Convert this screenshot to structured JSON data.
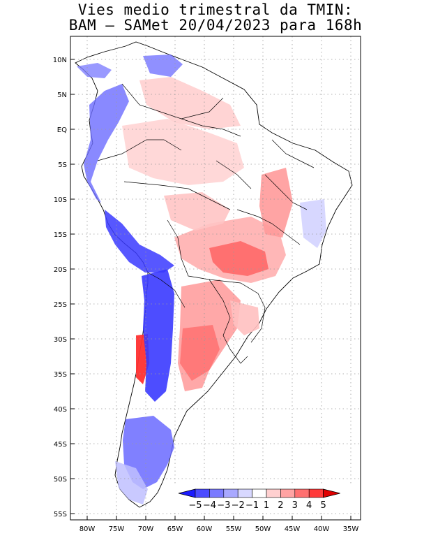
{
  "title": {
    "line1": "Vies medio trimestral da TMIN:",
    "line2": "BAM – SAMet 20/04/2023  para 168h"
  },
  "map_data": {
    "region": "South America",
    "lon_range": [
      -83,
      -35
    ],
    "lat_range": [
      -56,
      13
    ],
    "lon_ticks": [
      "80W",
      "75W",
      "70W",
      "65W",
      "60W",
      "55W",
      "50W",
      "45W",
      "40W",
      "35W"
    ],
    "lat_ticks": [
      "10N",
      "5N",
      "EQ",
      "5S",
      "10S",
      "15S",
      "20S",
      "25S",
      "30S",
      "35S",
      "40S",
      "45S",
      "50S",
      "55S"
    ],
    "grid": "dotted",
    "colorbar": {
      "labels": [
        "−5",
        "−4",
        "−3",
        "−2",
        "−1",
        "1",
        "2",
        "3",
        "4",
        "5"
      ],
      "colors": [
        "#1a1aff",
        "#4b4bff",
        "#7a7aff",
        "#a8a8ff",
        "#d8d8ff",
        "#ffffff",
        "#ffd0d0",
        "#ffa3a3",
        "#ff7070",
        "#ff3a3a",
        "#e00000"
      ]
    }
  }
}
